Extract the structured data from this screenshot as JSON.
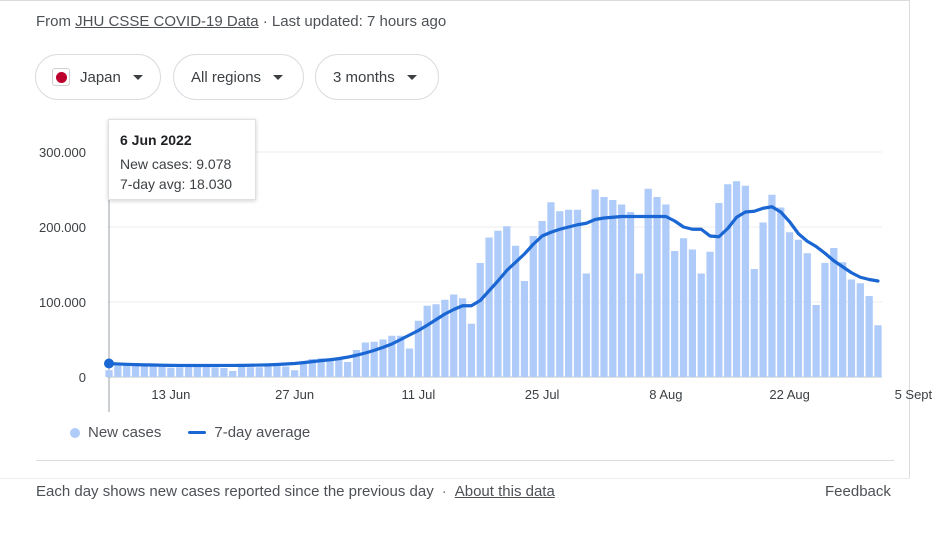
{
  "source": {
    "prefix": "From",
    "link": "JHU CSSE COVID-19 Data",
    "separator": "·",
    "updated": "Last updated: 7 hours ago"
  },
  "filters": {
    "country": "Japan",
    "region": "All regions",
    "range": "3 months"
  },
  "tooltip": {
    "date": "6 Jun 2022",
    "new_cases": "New cases: 9.078",
    "avg": "7-day avg: 18.030"
  },
  "legend": {
    "new_cases": "New cases",
    "avg": "7-day average"
  },
  "footer": {
    "note": "Each day shows new cases reported since the previous day",
    "separator": "·",
    "about": "About this data",
    "feedback": "Feedback"
  },
  "colors": {
    "bar": "#aecbfa",
    "line": "#1a66d2",
    "flag": "#bc002d"
  },
  "chart_data": {
    "type": "bar",
    "start_date": "6 Jun 2022",
    "ylim": [
      0,
      300000
    ],
    "y_ticks": [
      0,
      100000,
      200000,
      300000
    ],
    "y_tick_labels": [
      "0",
      "100.000",
      "200.000",
      "300.000"
    ],
    "x_tick_labels": [
      "13 Jun",
      "27 Jun",
      "11 Jul",
      "25 Jul",
      "8 Aug",
      "22 Aug",
      "5 Sept"
    ],
    "highlight": "6 Jun 2022",
    "series": [
      {
        "name": "New cases",
        "type": "bar",
        "values": [
          9078,
          17000,
          16000,
          15500,
          15000,
          14500,
          13500,
          12500,
          13000,
          13000,
          13000,
          13000,
          12500,
          12000,
          8000,
          13500,
          13000,
          13000,
          14000,
          14500,
          14000,
          9000,
          20000,
          24000,
          25000,
          25000,
          24000,
          20000,
          36000,
          46000,
          47000,
          50000,
          55000,
          55000,
          38000,
          75000,
          95000,
          97000,
          103000,
          110000,
          105000,
          71000,
          152000,
          186000,
          195000,
          201000,
          175000,
          128000,
          188000,
          208000,
          233000,
          221000,
          223000,
          223000,
          138000,
          250000,
          240000,
          236000,
          230000,
          220000,
          138000,
          251000,
          240000,
          230000,
          168000,
          185000,
          170000,
          138000,
          167000,
          232000,
          257000,
          261000,
          255000,
          144000,
          206000,
          243000,
          226000,
          193000,
          183000,
          165000,
          96000,
          152000,
          172000,
          153000,
          130000,
          125000,
          108000,
          69000
        ]
      },
      {
        "name": "7-day average",
        "type": "line",
        "values": [
          18030,
          17400,
          16900,
          16500,
          16200,
          16000,
          15700,
          15500,
          15400,
          15300,
          15300,
          15300,
          15300,
          15400,
          15400,
          15500,
          15700,
          15900,
          16200,
          16700,
          17300,
          18000,
          19200,
          20500,
          21800,
          23000,
          24500,
          26500,
          29000,
          32000,
          35500,
          39500,
          44000,
          50000,
          56000,
          62000,
          69000,
          76500,
          84000,
          90000,
          95000,
          95000,
          102000,
          115000,
          128000,
          142000,
          153000,
          164000,
          177000,
          188000,
          193000,
          197000,
          200000,
          203000,
          205000,
          210000,
          212000,
          213000,
          214000,
          214000,
          214000,
          214000,
          214000,
          214000,
          208000,
          200000,
          197000,
          197000,
          188000,
          187000,
          198000,
          213000,
          220000,
          221000,
          225000,
          227000,
          220000,
          207000,
          191000,
          181000,
          174000,
          165000,
          155000,
          147000,
          139000,
          133000,
          130000,
          128000
        ]
      }
    ]
  }
}
